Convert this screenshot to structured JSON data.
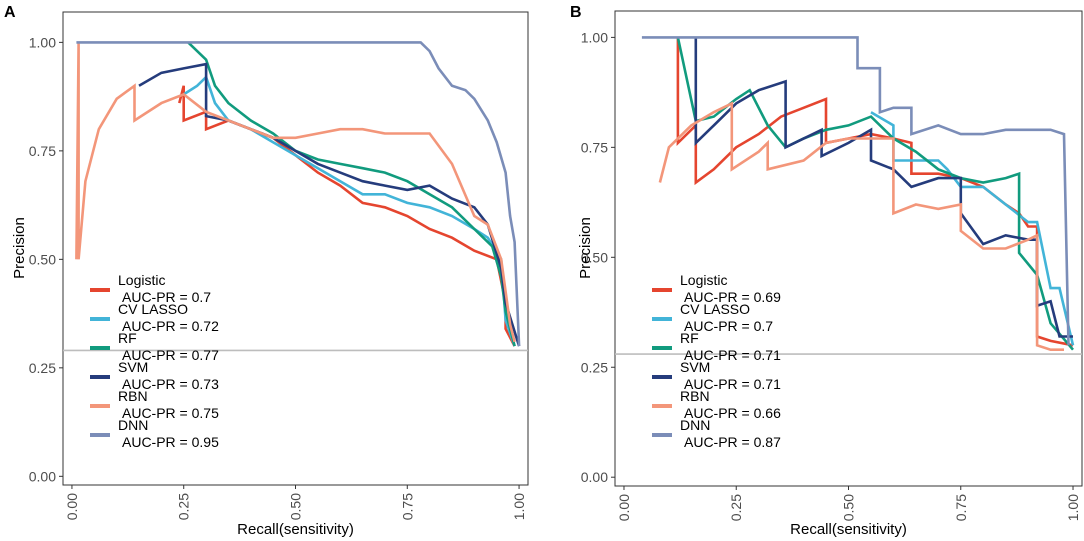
{
  "chart_data": [
    {
      "panel_label": "A",
      "type": "line",
      "xlabel": "Recall(sensitivity)",
      "ylabel": "Precision",
      "xlim": [
        -0.02,
        1.02
      ],
      "ylim": [
        -0.02,
        1.07
      ],
      "xticks": [
        "0.00",
        "0.25",
        "0.50",
        "0.75",
        "1.00"
      ],
      "yticks": [
        "0.00",
        "0.25",
        "0.50",
        "0.75",
        "1.00"
      ],
      "baseline": 0.29,
      "legend_position": "bottom-left",
      "series": [
        {
          "name": "Logistic",
          "auc": "AUC-PR = 0.7",
          "color": "#e5452f",
          "points": [
            [
              0.24,
              0.86
            ],
            [
              0.25,
              0.9
            ],
            [
              0.25,
              0.82
            ],
            [
              0.3,
              0.84
            ],
            [
              0.3,
              0.8
            ],
            [
              0.35,
              0.82
            ],
            [
              0.4,
              0.8
            ],
            [
              0.45,
              0.78
            ],
            [
              0.5,
              0.74
            ],
            [
              0.55,
              0.7
            ],
            [
              0.6,
              0.67
            ],
            [
              0.65,
              0.63
            ],
            [
              0.7,
              0.62
            ],
            [
              0.75,
              0.6
            ],
            [
              0.8,
              0.57
            ],
            [
              0.85,
              0.55
            ],
            [
              0.9,
              0.52
            ],
            [
              0.95,
              0.5
            ],
            [
              0.97,
              0.4
            ],
            [
              0.97,
              0.34
            ],
            [
              0.99,
              0.3
            ]
          ]
        },
        {
          "name": "CV LASSO",
          "auc": "AUC-PR = 0.72",
          "color": "#42b4d8",
          "points": [
            [
              0.25,
              0.88
            ],
            [
              0.28,
              0.9
            ],
            [
              0.3,
              0.92
            ],
            [
              0.32,
              0.86
            ],
            [
              0.35,
              0.82
            ],
            [
              0.4,
              0.8
            ],
            [
              0.45,
              0.77
            ],
            [
              0.5,
              0.74
            ],
            [
              0.55,
              0.71
            ],
            [
              0.6,
              0.68
            ],
            [
              0.65,
              0.65
            ],
            [
              0.7,
              0.65
            ],
            [
              0.75,
              0.63
            ],
            [
              0.8,
              0.62
            ],
            [
              0.85,
              0.6
            ],
            [
              0.9,
              0.57
            ],
            [
              0.93,
              0.55
            ],
            [
              0.96,
              0.5
            ],
            [
              0.97,
              0.36
            ],
            [
              0.99,
              0.3
            ]
          ]
        },
        {
          "name": "RF",
          "auc": "AUC-PR = 0.77",
          "color": "#119b7e",
          "points": [
            [
              0.26,
              1.0
            ],
            [
              0.3,
              0.96
            ],
            [
              0.32,
              0.9
            ],
            [
              0.35,
              0.86
            ],
            [
              0.4,
              0.82
            ],
            [
              0.45,
              0.79
            ],
            [
              0.5,
              0.75
            ],
            [
              0.55,
              0.73
            ],
            [
              0.6,
              0.72
            ],
            [
              0.65,
              0.71
            ],
            [
              0.7,
              0.7
            ],
            [
              0.75,
              0.68
            ],
            [
              0.8,
              0.65
            ],
            [
              0.85,
              0.62
            ],
            [
              0.9,
              0.57
            ],
            [
              0.94,
              0.53
            ],
            [
              0.96,
              0.46
            ],
            [
              0.97,
              0.38
            ],
            [
              0.99,
              0.3
            ]
          ]
        },
        {
          "name": "SVM",
          "auc": "AUC-PR = 0.73",
          "color": "#253c7c",
          "points": [
            [
              0.15,
              0.9
            ],
            [
              0.2,
              0.93
            ],
            [
              0.25,
              0.94
            ],
            [
              0.3,
              0.95
            ],
            [
              0.3,
              0.83
            ],
            [
              0.35,
              0.82
            ],
            [
              0.4,
              0.8
            ],
            [
              0.45,
              0.78
            ],
            [
              0.5,
              0.75
            ],
            [
              0.55,
              0.72
            ],
            [
              0.6,
              0.7
            ],
            [
              0.65,
              0.68
            ],
            [
              0.7,
              0.67
            ],
            [
              0.75,
              0.66
            ],
            [
              0.8,
              0.67
            ],
            [
              0.85,
              0.64
            ],
            [
              0.9,
              0.62
            ],
            [
              0.93,
              0.58
            ],
            [
              0.96,
              0.48
            ],
            [
              0.97,
              0.4
            ],
            [
              1.0,
              0.3
            ]
          ]
        },
        {
          "name": "RBN",
          "auc": "AUC-PR = 0.75",
          "color": "#f3967a",
          "points": [
            [
              0.01,
              0.5
            ],
            [
              0.015,
              1.0
            ],
            [
              0.015,
              0.5
            ],
            [
              0.03,
              0.68
            ],
            [
              0.06,
              0.8
            ],
            [
              0.1,
              0.87
            ],
            [
              0.14,
              0.9
            ],
            [
              0.14,
              0.82
            ],
            [
              0.2,
              0.86
            ],
            [
              0.25,
              0.88
            ],
            [
              0.3,
              0.84
            ],
            [
              0.35,
              0.82
            ],
            [
              0.4,
              0.8
            ],
            [
              0.45,
              0.78
            ],
            [
              0.5,
              0.78
            ],
            [
              0.55,
              0.79
            ],
            [
              0.6,
              0.8
            ],
            [
              0.65,
              0.8
            ],
            [
              0.7,
              0.79
            ],
            [
              0.75,
              0.79
            ],
            [
              0.8,
              0.79
            ],
            [
              0.85,
              0.72
            ],
            [
              0.9,
              0.6
            ],
            [
              0.93,
              0.58
            ],
            [
              0.96,
              0.5
            ],
            [
              0.98,
              0.35
            ],
            [
              0.99,
              0.31
            ]
          ]
        },
        {
          "name": "DNN",
          "auc": "AUC-PR = 0.95",
          "color": "#7b8db8",
          "points": [
            [
              0.01,
              1.0
            ],
            [
              0.2,
              1.0
            ],
            [
              0.5,
              1.0
            ],
            [
              0.78,
              1.0
            ],
            [
              0.8,
              0.98
            ],
            [
              0.82,
              0.94
            ],
            [
              0.85,
              0.9
            ],
            [
              0.88,
              0.89
            ],
            [
              0.9,
              0.87
            ],
            [
              0.93,
              0.82
            ],
            [
              0.95,
              0.77
            ],
            [
              0.97,
              0.7
            ],
            [
              0.98,
              0.6
            ],
            [
              0.99,
              0.54
            ],
            [
              1.0,
              0.3
            ]
          ]
        }
      ]
    },
    {
      "panel_label": "B",
      "type": "line",
      "xlabel": "Recall(sensitivity)",
      "ylabel": "Precision",
      "xlim": [
        -0.02,
        1.02
      ],
      "ylim": [
        -0.02,
        1.06
      ],
      "xticks": [
        "0.00",
        "0.25",
        "0.50",
        "0.75",
        "1.00"
      ],
      "yticks": [
        "0.00",
        "0.25",
        "0.50",
        "0.75",
        "1.00"
      ],
      "baseline": 0.28,
      "legend_position": "bottom-left",
      "series": [
        {
          "name": "Logistic",
          "auc": "AUC-PR = 0.69",
          "color": "#e5452f",
          "points": [
            [
              0.12,
              1.0
            ],
            [
              0.12,
              0.76
            ],
            [
              0.16,
              0.8
            ],
            [
              0.16,
              0.67
            ],
            [
              0.2,
              0.7
            ],
            [
              0.25,
              0.75
            ],
            [
              0.3,
              0.78
            ],
            [
              0.35,
              0.82
            ],
            [
              0.4,
              0.84
            ],
            [
              0.45,
              0.86
            ],
            [
              0.45,
              0.76
            ],
            [
              0.5,
              0.77
            ],
            [
              0.55,
              0.78
            ],
            [
              0.6,
              0.77
            ],
            [
              0.64,
              0.76
            ],
            [
              0.64,
              0.69
            ],
            [
              0.7,
              0.69
            ],
            [
              0.75,
              0.68
            ],
            [
              0.8,
              0.66
            ],
            [
              0.85,
              0.62
            ],
            [
              0.88,
              0.6
            ],
            [
              0.9,
              0.57
            ],
            [
              0.92,
              0.57
            ],
            [
              0.92,
              0.32
            ],
            [
              0.95,
              0.31
            ],
            [
              1.0,
              0.3
            ]
          ]
        },
        {
          "name": "CV LASSO",
          "auc": "AUC-PR = 0.7",
          "color": "#42b4d8",
          "points": [
            [
              0.55,
              0.83
            ],
            [
              0.6,
              0.8
            ],
            [
              0.6,
              0.72
            ],
            [
              0.65,
              0.72
            ],
            [
              0.7,
              0.72
            ],
            [
              0.72,
              0.7
            ],
            [
              0.75,
              0.66
            ],
            [
              0.8,
              0.66
            ],
            [
              0.85,
              0.62
            ],
            [
              0.9,
              0.58
            ],
            [
              0.92,
              0.58
            ],
            [
              0.95,
              0.43
            ],
            [
              0.97,
              0.43
            ],
            [
              1.0,
              0.3
            ]
          ]
        },
        {
          "name": "RF",
          "auc": "AUC-PR = 0.71",
          "color": "#119b7e",
          "points": [
            [
              0.12,
              1.0
            ],
            [
              0.16,
              0.81
            ],
            [
              0.2,
              0.82
            ],
            [
              0.25,
              0.86
            ],
            [
              0.28,
              0.88
            ],
            [
              0.32,
              0.8
            ],
            [
              0.36,
              0.75
            ],
            [
              0.4,
              0.77
            ],
            [
              0.45,
              0.79
            ],
            [
              0.5,
              0.8
            ],
            [
              0.55,
              0.82
            ],
            [
              0.6,
              0.77
            ],
            [
              0.65,
              0.74
            ],
            [
              0.7,
              0.7
            ],
            [
              0.75,
              0.68
            ],
            [
              0.8,
              0.67
            ],
            [
              0.85,
              0.68
            ],
            [
              0.88,
              0.69
            ],
            [
              0.88,
              0.51
            ],
            [
              0.92,
              0.46
            ],
            [
              0.95,
              0.35
            ],
            [
              1.0,
              0.29
            ]
          ]
        },
        {
          "name": "SVM",
          "auc": "AUC-PR = 0.71",
          "color": "#253c7c",
          "points": [
            [
              0.16,
              1.0
            ],
            [
              0.16,
              0.76
            ],
            [
              0.2,
              0.8
            ],
            [
              0.25,
              0.85
            ],
            [
              0.3,
              0.88
            ],
            [
              0.36,
              0.9
            ],
            [
              0.36,
              0.75
            ],
            [
              0.44,
              0.79
            ],
            [
              0.44,
              0.73
            ],
            [
              0.5,
              0.76
            ],
            [
              0.55,
              0.79
            ],
            [
              0.55,
              0.72
            ],
            [
              0.6,
              0.7
            ],
            [
              0.64,
              0.66
            ],
            [
              0.7,
              0.68
            ],
            [
              0.75,
              0.68
            ],
            [
              0.75,
              0.6
            ],
            [
              0.8,
              0.53
            ],
            [
              0.85,
              0.55
            ],
            [
              0.9,
              0.54
            ],
            [
              0.92,
              0.54
            ],
            [
              0.92,
              0.39
            ],
            [
              0.95,
              0.4
            ],
            [
              0.97,
              0.32
            ],
            [
              1.0,
              0.32
            ]
          ]
        },
        {
          "name": "RBN",
          "auc": "AUC-PR = 0.66",
          "color": "#f3967a",
          "points": [
            [
              0.08,
              0.67
            ],
            [
              0.1,
              0.75
            ],
            [
              0.15,
              0.8
            ],
            [
              0.2,
              0.83
            ],
            [
              0.24,
              0.85
            ],
            [
              0.24,
              0.7
            ],
            [
              0.3,
              0.74
            ],
            [
              0.32,
              0.76
            ],
            [
              0.32,
              0.7
            ],
            [
              0.4,
              0.72
            ],
            [
              0.45,
              0.76
            ],
            [
              0.5,
              0.77
            ],
            [
              0.55,
              0.77
            ],
            [
              0.6,
              0.77
            ],
            [
              0.6,
              0.6
            ],
            [
              0.65,
              0.62
            ],
            [
              0.7,
              0.61
            ],
            [
              0.75,
              0.62
            ],
            [
              0.75,
              0.56
            ],
            [
              0.8,
              0.52
            ],
            [
              0.85,
              0.52
            ],
            [
              0.9,
              0.54
            ],
            [
              0.92,
              0.55
            ],
            [
              0.92,
              0.3
            ],
            [
              0.95,
              0.29
            ],
            [
              0.98,
              0.29
            ]
          ]
        },
        {
          "name": "DNN",
          "auc": "AUC-PR = 0.87",
          "color": "#7b8db8",
          "points": [
            [
              0.04,
              1.0
            ],
            [
              0.3,
              1.0
            ],
            [
              0.52,
              1.0
            ],
            [
              0.52,
              0.93
            ],
            [
              0.57,
              0.93
            ],
            [
              0.57,
              0.83
            ],
            [
              0.6,
              0.84
            ],
            [
              0.64,
              0.84
            ],
            [
              0.64,
              0.78
            ],
            [
              0.7,
              0.8
            ],
            [
              0.75,
              0.78
            ],
            [
              0.8,
              0.78
            ],
            [
              0.85,
              0.79
            ],
            [
              0.9,
              0.79
            ],
            [
              0.95,
              0.79
            ],
            [
              0.98,
              0.78
            ],
            [
              0.99,
              0.3
            ]
          ]
        }
      ]
    }
  ]
}
